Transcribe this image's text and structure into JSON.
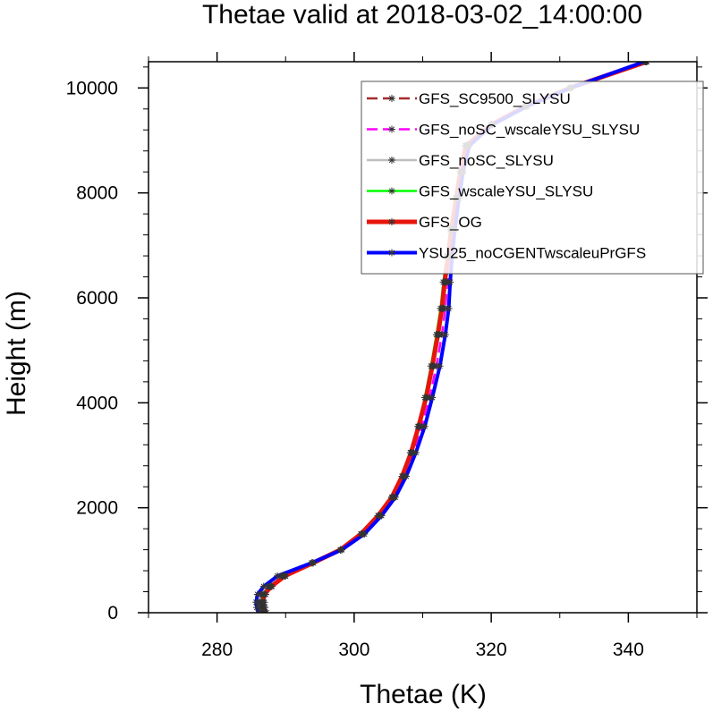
{
  "chart_data": {
    "type": "line",
    "title": "Thetae valid at 2018-03-02_14:00:00",
    "xlabel": "Thetae (K)",
    "ylabel": "Height (m)",
    "xlim": [
      270,
      350
    ],
    "ylim": [
      0,
      10500
    ],
    "xticks": [
      280,
      300,
      320,
      340
    ],
    "yticks": [
      0,
      2000,
      4000,
      6000,
      8000,
      10000
    ],
    "xtick_labels": [
      "280",
      "300",
      "320",
      "340"
    ],
    "ytick_labels": [
      "0",
      "2000",
      "4000",
      "6000",
      "8000",
      "10000"
    ],
    "grid": false,
    "legend_position": "top-right",
    "series": [
      {
        "name": "GFS_SC9500_SLYSU",
        "color": "#a52a2a",
        "dash": "dashed",
        "points": [
          [
            287.2,
            0
          ],
          [
            287.0,
            100
          ],
          [
            286.9,
            200
          ],
          [
            287.1,
            350
          ],
          [
            288.0,
            500
          ],
          [
            290.0,
            700
          ],
          [
            294.0,
            950
          ],
          [
            298.0,
            1200
          ],
          [
            301.0,
            1500
          ],
          [
            303.5,
            1850
          ],
          [
            305.5,
            2200
          ],
          [
            307.0,
            2600
          ],
          [
            308.3,
            3050
          ],
          [
            309.4,
            3550
          ],
          [
            310.5,
            4100
          ],
          [
            311.5,
            4700
          ],
          [
            312.3,
            5300
          ],
          [
            312.9,
            5800
          ],
          [
            313.3,
            6300
          ],
          [
            313.8,
            6800
          ],
          [
            314.3,
            7300
          ],
          [
            315.0,
            7900
          ],
          [
            315.6,
            8400
          ],
          [
            316.3,
            8900
          ],
          [
            320.0,
            9300
          ],
          [
            325.0,
            9650
          ],
          [
            331.5,
            10000
          ],
          [
            342.5,
            10500
          ]
        ]
      },
      {
        "name": "GFS_noSC_wscaleYSU_SLYSU",
        "color": "#ff00ff",
        "dash": "dashed",
        "points": [
          [
            286.6,
            0
          ],
          [
            286.4,
            100
          ],
          [
            286.3,
            200
          ],
          [
            286.5,
            350
          ],
          [
            287.5,
            500
          ],
          [
            289.5,
            700
          ],
          [
            294.0,
            950
          ],
          [
            298.2,
            1200
          ],
          [
            301.3,
            1500
          ],
          [
            303.8,
            1850
          ],
          [
            305.8,
            2200
          ],
          [
            307.3,
            2600
          ],
          [
            308.7,
            3050
          ],
          [
            309.9,
            3550
          ],
          [
            311.0,
            4100
          ],
          [
            312.0,
            4700
          ],
          [
            312.8,
            5300
          ],
          [
            313.3,
            5800
          ],
          [
            313.6,
            6300
          ],
          [
            314.0,
            6800
          ],
          [
            314.5,
            7300
          ],
          [
            315.1,
            7900
          ],
          [
            315.7,
            8400
          ],
          [
            316.6,
            8900
          ],
          [
            320.0,
            9300
          ],
          [
            325.2,
            9650
          ],
          [
            331.6,
            10000
          ],
          [
            342.6,
            10500
          ]
        ]
      },
      {
        "name": "GFS_noSC_SLYSU",
        "color": "#bebebe",
        "dash": "solid",
        "points": [
          [
            286.5,
            0
          ],
          [
            286.3,
            100
          ],
          [
            286.2,
            200
          ],
          [
            286.4,
            350
          ],
          [
            287.4,
            500
          ],
          [
            289.4,
            700
          ],
          [
            294.0,
            950
          ],
          [
            298.0,
            1200
          ],
          [
            301.1,
            1500
          ],
          [
            303.6,
            1850
          ],
          [
            305.6,
            2200
          ],
          [
            307.1,
            2600
          ],
          [
            308.4,
            3050
          ],
          [
            309.5,
            3550
          ],
          [
            310.6,
            4100
          ],
          [
            311.6,
            4700
          ],
          [
            312.4,
            5300
          ],
          [
            313.0,
            5800
          ],
          [
            313.4,
            6300
          ],
          [
            313.9,
            6800
          ],
          [
            314.4,
            7300
          ],
          [
            315.0,
            7900
          ],
          [
            315.6,
            8400
          ],
          [
            316.4,
            8900
          ],
          [
            320.0,
            9300
          ],
          [
            325.0,
            9650
          ],
          [
            331.5,
            10000
          ],
          [
            342.5,
            10500
          ]
        ]
      },
      {
        "name": "GFS_wscaleYSU_SLYSU",
        "color": "#00ff00",
        "dash": "solid",
        "points": [
          [
            286.8,
            0
          ],
          [
            286.6,
            100
          ],
          [
            286.5,
            200
          ],
          [
            286.7,
            350
          ],
          [
            287.7,
            500
          ],
          [
            289.7,
            700
          ],
          [
            294.0,
            950
          ],
          [
            298.0,
            1200
          ],
          [
            301.0,
            1500
          ],
          [
            303.5,
            1850
          ],
          [
            305.5,
            2200
          ],
          [
            307.0,
            2600
          ],
          [
            308.2,
            3050
          ],
          [
            309.3,
            3550
          ],
          [
            310.3,
            4100
          ],
          [
            311.2,
            4700
          ],
          [
            312.0,
            5300
          ],
          [
            312.6,
            5800
          ],
          [
            313.0,
            6300
          ],
          [
            313.5,
            6800
          ],
          [
            314.0,
            7300
          ],
          [
            314.8,
            7900
          ],
          [
            315.5,
            8400
          ],
          [
            316.2,
            8900
          ],
          [
            320.0,
            9300
          ],
          [
            325.0,
            9650
          ],
          [
            331.5,
            10000
          ],
          [
            342.5,
            10500
          ]
        ]
      },
      {
        "name": "GFS_OG",
        "color": "#e8150c",
        "dash": "solid",
        "points": [
          [
            287.0,
            0
          ],
          [
            286.8,
            100
          ],
          [
            286.7,
            200
          ],
          [
            286.9,
            350
          ],
          [
            287.9,
            500
          ],
          [
            289.9,
            700
          ],
          [
            294.0,
            950
          ],
          [
            298.0,
            1200
          ],
          [
            301.0,
            1500
          ],
          [
            303.5,
            1850
          ],
          [
            305.5,
            2200
          ],
          [
            307.0,
            2600
          ],
          [
            308.3,
            3050
          ],
          [
            309.4,
            3550
          ],
          [
            310.5,
            4100
          ],
          [
            311.4,
            4700
          ],
          [
            312.2,
            5300
          ],
          [
            312.8,
            5800
          ],
          [
            313.2,
            6300
          ],
          [
            313.7,
            6800
          ],
          [
            314.2,
            7300
          ],
          [
            314.9,
            7900
          ],
          [
            315.5,
            8400
          ],
          [
            316.3,
            8900
          ],
          [
            320.0,
            9300
          ],
          [
            325.0,
            9650
          ],
          [
            331.5,
            10000
          ],
          [
            342.7,
            10500
          ]
        ]
      },
      {
        "name": "YSU25_noCGENTwscaleuPrGFS",
        "color": "#0000ff",
        "dash": "solid",
        "points": [
          [
            286.0,
            0
          ],
          [
            285.8,
            100
          ],
          [
            285.7,
            200
          ],
          [
            285.9,
            350
          ],
          [
            286.8,
            500
          ],
          [
            288.8,
            700
          ],
          [
            293.8,
            950
          ],
          [
            298.2,
            1200
          ],
          [
            301.5,
            1500
          ],
          [
            304.0,
            1850
          ],
          [
            306.0,
            2200
          ],
          [
            307.6,
            2600
          ],
          [
            309.0,
            3050
          ],
          [
            310.3,
            3550
          ],
          [
            311.4,
            4100
          ],
          [
            312.5,
            4700
          ],
          [
            313.3,
            5300
          ],
          [
            313.8,
            5800
          ],
          [
            314.0,
            6300
          ],
          [
            314.3,
            6800
          ],
          [
            314.7,
            7300
          ],
          [
            315.3,
            7900
          ],
          [
            315.9,
            8400
          ],
          [
            316.8,
            8900
          ],
          [
            320.2,
            9300
          ],
          [
            325.2,
            9650
          ],
          [
            331.6,
            10000
          ],
          [
            342.3,
            10500
          ]
        ]
      }
    ]
  }
}
